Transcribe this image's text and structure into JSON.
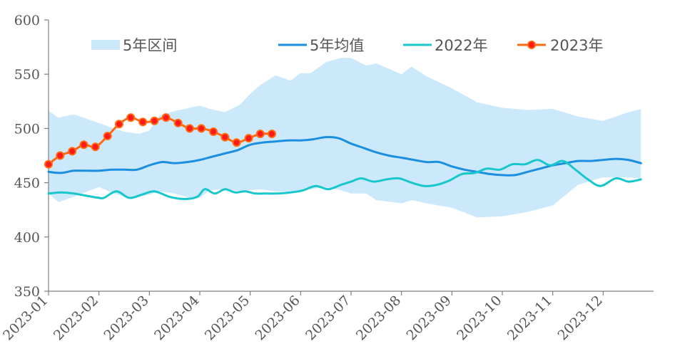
{
  "chart_data": {
    "type": "line",
    "title": "",
    "xlabel": "",
    "ylabel": "",
    "ylim": [
      350,
      600
    ],
    "yticks": [
      "350",
      "400",
      "450",
      "500",
      "550",
      "600"
    ],
    "xticks": [
      "2023-01",
      "2023-02",
      "2023-03",
      "2023-04",
      "2023-05",
      "2023-06",
      "2023-07",
      "2023-08",
      "2023-09",
      "2023-10",
      "2023-11",
      "2023-12"
    ],
    "grid": false,
    "legend_position": "top",
    "band": {
      "name": "5年区间",
      "color": "#cce9fb",
      "x": [
        0,
        0.2,
        0.5,
        1.0,
        1.3,
        1.5,
        1.8,
        2.0,
        2.2,
        2.5,
        2.8,
        3.0,
        3.2,
        3.5,
        3.8,
        4.0,
        4.2,
        4.5,
        4.8,
        5.0,
        5.2,
        5.5,
        5.8,
        6.0,
        6.3,
        6.5,
        7.0,
        7.2,
        7.5,
        8.0,
        8.5,
        9.0,
        9.5,
        10.0,
        10.5,
        11.0,
        11.5,
        11.75
      ],
      "upper": [
        516,
        510,
        513,
        505,
        500,
        497,
        495,
        498,
        512,
        516,
        519,
        521,
        518,
        515,
        522,
        532,
        540,
        549,
        544,
        551,
        551,
        561,
        565,
        565,
        558,
        560,
        550,
        557,
        548,
        537,
        524,
        519,
        517,
        518,
        511,
        507,
        515,
        518
      ],
      "lower": [
        440,
        432,
        437,
        446,
        440,
        437,
        437,
        439,
        442,
        440,
        436,
        436,
        443,
        444,
        442,
        443,
        444,
        442,
        441,
        443,
        444,
        446,
        443,
        440,
        440,
        434,
        431,
        434,
        431,
        427,
        418,
        419,
        423,
        429,
        448,
        455,
        455,
        454
      ]
    },
    "series": [
      {
        "name": "5年均值",
        "color": "#1a8fe0",
        "x": [
          0,
          0.25,
          0.5,
          0.75,
          1.0,
          1.25,
          1.5,
          1.75,
          2.0,
          2.25,
          2.5,
          2.75,
          3.0,
          3.25,
          3.5,
          3.75,
          4.0,
          4.25,
          4.5,
          4.75,
          5.0,
          5.25,
          5.5,
          5.75,
          6.0,
          6.25,
          6.5,
          6.75,
          7.0,
          7.25,
          7.5,
          7.75,
          8.0,
          8.25,
          8.5,
          8.75,
          9.0,
          9.25,
          9.5,
          9.75,
          10.0,
          10.25,
          10.5,
          10.75,
          11.0,
          11.25,
          11.5,
          11.75
        ],
        "values": [
          460,
          459,
          461,
          461,
          461,
          462,
          462,
          462,
          466,
          469,
          468,
          469,
          471,
          474,
          477,
          480,
          485,
          487,
          488,
          489,
          489,
          490,
          492,
          491,
          486,
          482,
          478,
          475,
          473,
          471,
          469,
          469,
          465,
          462,
          460,
          458,
          457,
          457,
          460,
          463,
          466,
          468,
          470,
          470,
          471,
          472,
          471,
          468
        ]
      },
      {
        "name": "2022年",
        "color": "#17c7cc",
        "x": [
          0,
          0.25,
          0.5,
          0.75,
          1.0,
          1.1,
          1.35,
          1.6,
          1.85,
          2.1,
          2.4,
          2.7,
          2.95,
          3.1,
          3.3,
          3.5,
          3.7,
          3.9,
          4.1,
          4.3,
          4.55,
          4.8,
          5.05,
          5.3,
          5.55,
          5.8,
          6.0,
          6.2,
          6.45,
          6.7,
          6.95,
          7.2,
          7.45,
          7.7,
          7.95,
          8.2,
          8.45,
          8.7,
          8.95,
          9.2,
          9.45,
          9.7,
          9.95,
          10.2,
          10.45,
          10.7,
          10.95,
          11.25,
          11.5,
          11.75
        ],
        "values": [
          440,
          441,
          440,
          438,
          436,
          436,
          442,
          436,
          439,
          442,
          437,
          435,
          437,
          444,
          440,
          444,
          441,
          442,
          440,
          440,
          440,
          441,
          443,
          447,
          444,
          448,
          451,
          454,
          451,
          453,
          454,
          450,
          447,
          448,
          452,
          458,
          459,
          463,
          462,
          467,
          467,
          471,
          466,
          470,
          462,
          453,
          447,
          454,
          451,
          453
        ]
      },
      {
        "name": "2023年",
        "color": "#ff6a10",
        "marker_color": "#ff1a1a",
        "x": [
          0,
          0.23,
          0.47,
          0.7,
          0.93,
          1.17,
          1.4,
          1.63,
          1.87,
          2.1,
          2.33,
          2.57,
          2.8,
          3.03,
          3.27,
          3.5,
          3.73,
          3.97,
          4.2,
          4.43
        ],
        "values": [
          467,
          475,
          479,
          485,
          483,
          493,
          504,
          510,
          506,
          507,
          510,
          505,
          500,
          500,
          497,
          492,
          487,
          491,
          495,
          495
        ]
      }
    ]
  }
}
